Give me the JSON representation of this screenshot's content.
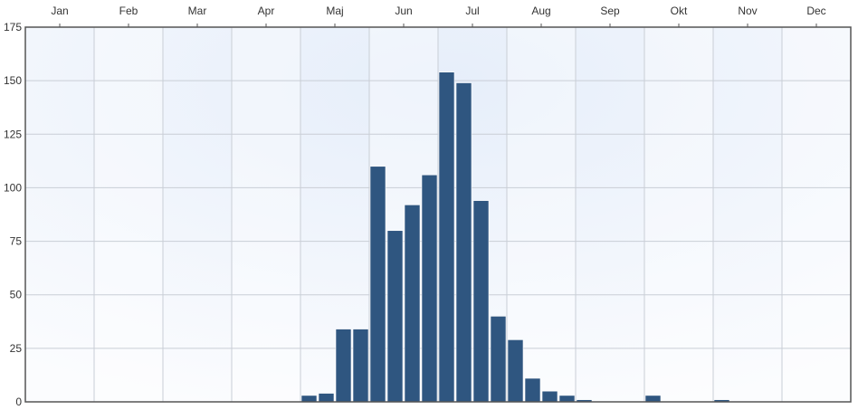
{
  "chart_data": {
    "type": "bar",
    "title": "",
    "xlabel": "",
    "ylabel": "",
    "months": [
      "Jan",
      "Feb",
      "Mar",
      "Apr",
      "Maj",
      "Jun",
      "Jul",
      "Aug",
      "Sep",
      "Okt",
      "Nov",
      "Dec"
    ],
    "bins_per_month": 4,
    "values": [
      0,
      0,
      0,
      0,
      0,
      0,
      0,
      0,
      0,
      0,
      0,
      0,
      0,
      0,
      0,
      0,
      3,
      4,
      34,
      34,
      110,
      80,
      92,
      106,
      154,
      149,
      94,
      40,
      29,
      11,
      5,
      3,
      1,
      0,
      0,
      0,
      3,
      0,
      0,
      0,
      1,
      0,
      0,
      0,
      0,
      0,
      0,
      0
    ],
    "ylim": [
      0,
      175
    ],
    "yticks": [
      "0",
      "25",
      "50",
      "75",
      "100",
      "125",
      "150",
      "175"
    ],
    "grid": true,
    "bar_color": "#2f5680",
    "background_color": "#eef4fb"
  }
}
